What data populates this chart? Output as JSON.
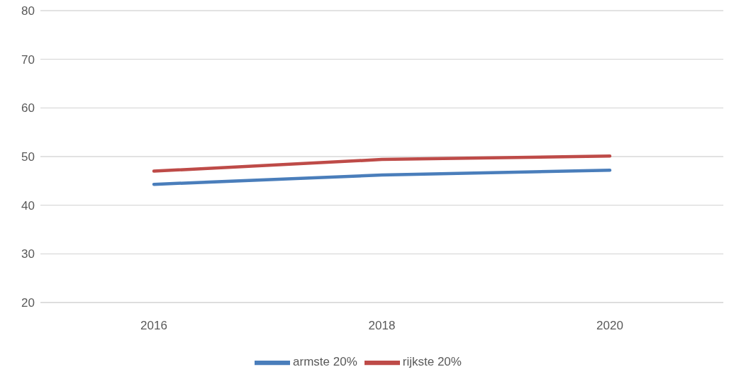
{
  "chart_data": {
    "type": "line",
    "categories": [
      "2016",
      "2018",
      "2020"
    ],
    "series": [
      {
        "name": "armste 20%",
        "color": "#4a7ebb",
        "values": [
          44.3,
          46.2,
          47.2
        ]
      },
      {
        "name": "rijkste 20%",
        "color": "#be4b48",
        "values": [
          47.0,
          49.4,
          50.1
        ]
      }
    ],
    "ylim": [
      20,
      80
    ],
    "yticks": [
      20,
      30,
      40,
      50,
      60,
      70,
      80
    ],
    "grid": "y",
    "legend": "bottom",
    "marker": "none",
    "line_style": "solid"
  }
}
